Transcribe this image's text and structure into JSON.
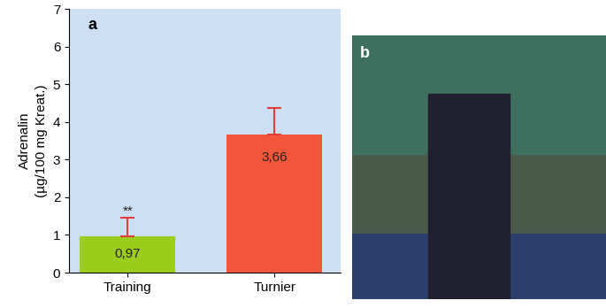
{
  "chart_data": {
    "type": "bar",
    "panel_label": "a",
    "y_label": "Adrenalin\n(µg/100 mg Kreat.)",
    "categories": [
      "Training",
      "Turnier"
    ],
    "values": [
      0.97,
      3.66
    ],
    "value_labels": [
      "0,97",
      "3,66"
    ],
    "errors": [
      0.48,
      0.72
    ],
    "colors": [
      "#9acd1e",
      "#f0573a"
    ],
    "annotations": [
      {
        "category": "Training",
        "text": "**"
      }
    ],
    "data_labels": true,
    "ylim": [
      0,
      7
    ],
    "yticks": [
      0,
      1,
      2,
      3,
      4,
      5,
      6,
      7
    ],
    "grid": false
  },
  "image": {
    "label": "b"
  }
}
